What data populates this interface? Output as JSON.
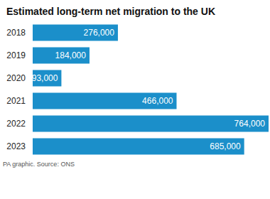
{
  "chart_data": {
    "type": "bar",
    "title": "Estimated long-term net migration to the UK",
    "source": "PA graphic. Source: ONS",
    "categories": [
      "2018",
      "2019",
      "2020",
      "2021",
      "2022",
      "2023"
    ],
    "values": [
      276000,
      184000,
      93000,
      466000,
      764000,
      685000
    ],
    "value_labels": [
      "276,000",
      "184,000",
      "93,000",
      "466,000",
      "764,000",
      "685,000"
    ],
    "color": "#1b8fca",
    "orientation": "horizontal",
    "data_labels": true,
    "tick_labels": "y",
    "grid": false
  }
}
